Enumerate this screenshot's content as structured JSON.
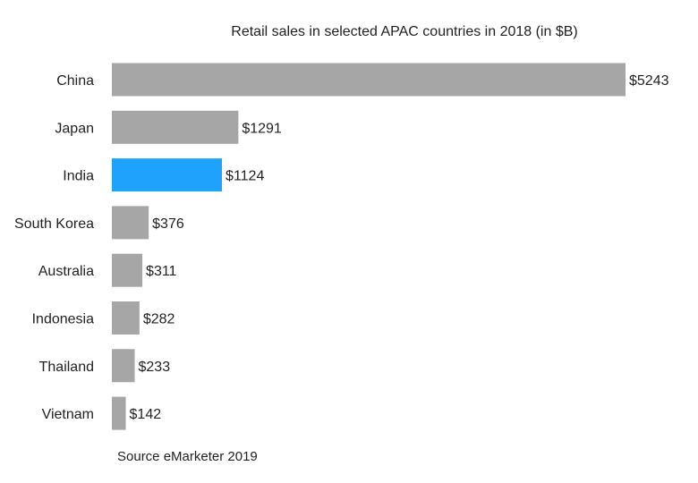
{
  "chart_data": {
    "type": "bar",
    "orientation": "horizontal",
    "title": "Retail sales in selected APAC countries in 2018 (in $B)",
    "categories": [
      "China",
      "Japan",
      "India",
      "South Korea",
      "Australia",
      "Indonesia",
      "Thailand",
      "Vietnam"
    ],
    "values": [
      5243,
      1291,
      1124,
      376,
      311,
      282,
      233,
      142
    ],
    "data_labels": [
      "$5243",
      "$1291",
      "$1124",
      "$376",
      "$311",
      "$282",
      "$233",
      "$142"
    ],
    "highlight": "India",
    "colors": {
      "default": "#a6a6a6",
      "highlight": "#1fa2fc"
    },
    "grid": false,
    "legend": "none",
    "source": "Source eMarketer 2019"
  }
}
